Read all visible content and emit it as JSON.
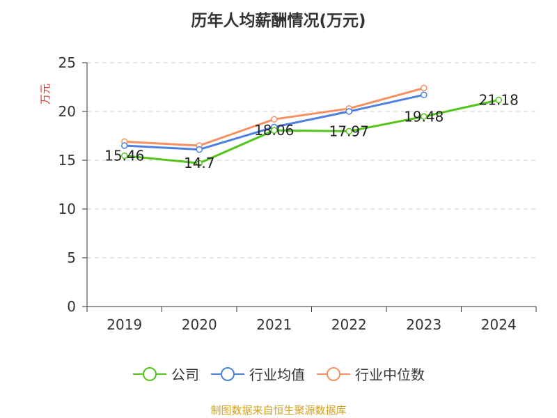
{
  "chart_data": {
    "type": "line",
    "title": "历年人均薪酬情况(万元)",
    "ylabel": "万元",
    "xlabel": "",
    "categories": [
      "2019",
      "2020",
      "2021",
      "2022",
      "2023",
      "2024"
    ],
    "ylim": [
      0,
      25
    ],
    "yticks": [
      0,
      5,
      10,
      15,
      20,
      25
    ],
    "grid": "dashed horizontal",
    "legend_position": "bottom",
    "series": [
      {
        "name": "公司",
        "color": "#52c41a",
        "values": [
          15.46,
          14.7,
          18.06,
          17.97,
          19.48,
          21.18
        ],
        "labels": [
          "15.46",
          "14.7",
          "18.06",
          "17.97",
          "19.48",
          "21.18"
        ]
      },
      {
        "name": "行业均值",
        "color": "#4e7fe0",
        "values": [
          16.5,
          16.1,
          18.4,
          20.0,
          21.7,
          null
        ]
      },
      {
        "name": "行业中位数",
        "color": "#f59062",
        "values": [
          16.9,
          16.5,
          19.2,
          20.3,
          22.4,
          null
        ]
      }
    ]
  },
  "source": "制图数据来自恒生聚源数据库"
}
